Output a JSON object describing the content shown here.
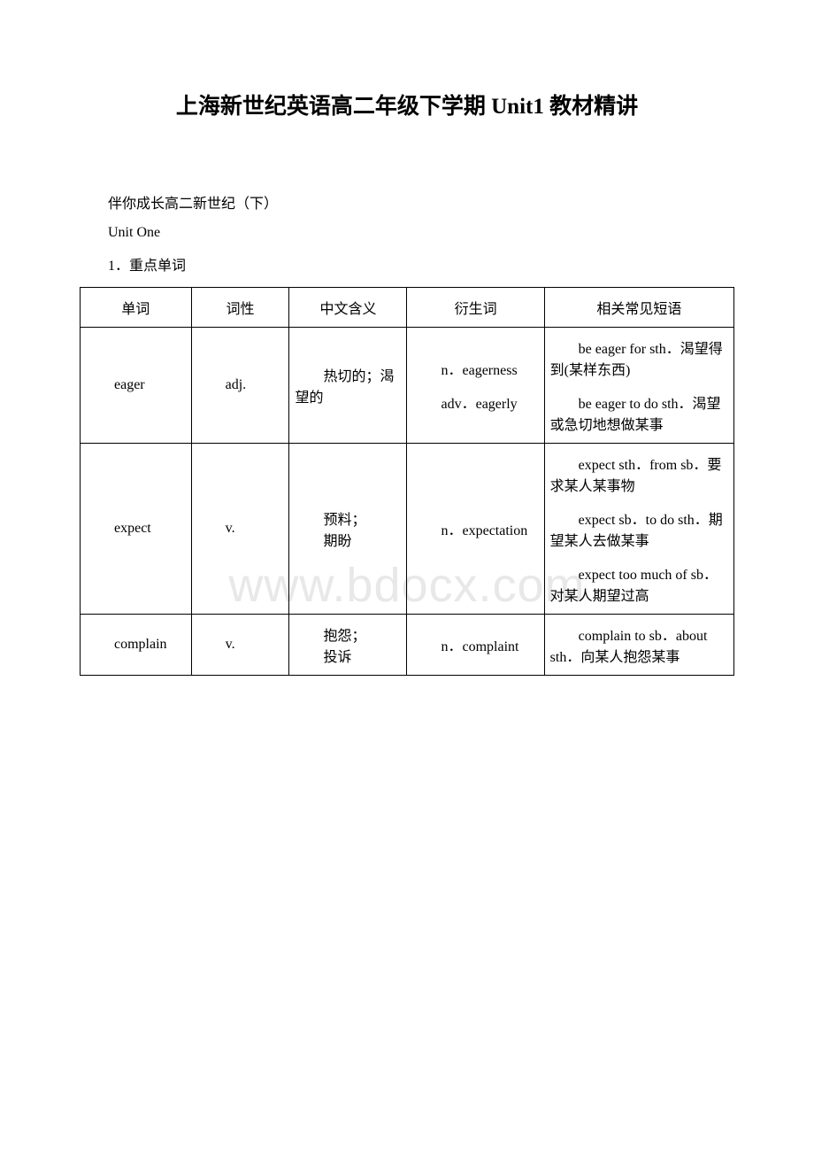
{
  "title": "上海新世纪英语高二年级下学期 Unit1 教材精讲",
  "intro": "伴你成长高二新世纪（下）",
  "unit": "Unit One",
  "section": "1．重点单词",
  "watermark": "www.bdocx.com",
  "headers": {
    "word": "单词",
    "pos": "词性",
    "meaning": "中文含义",
    "deriv": "衍生词",
    "phrase": "相关常见短语"
  },
  "rows": [
    {
      "word": "eager",
      "pos": "adj.",
      "meaning": "热切的；渴望的",
      "deriv": [
        "n．eagerness",
        "adv．eagerly"
      ],
      "phrase": [
        "be eager for sth．渴望得到(某样东西)",
        "be eager to do sth．渴望或急切地想做某事"
      ]
    },
    {
      "word": "expect",
      "pos": "v.",
      "meaning_lines": [
        "预料；",
        "期盼"
      ],
      "deriv": [
        "n．expectation"
      ],
      "phrase": [
        "expect sth．from sb．要求某人某事物",
        "expect sb．to do sth．期望某人去做某事",
        "expect too much of sb．对某人期望过高"
      ]
    },
    {
      "word": "complain",
      "pos": "v.",
      "meaning_lines": [
        "抱怨；",
        "投诉"
      ],
      "deriv": [
        "n．complaint"
      ],
      "phrase": [
        "complain to sb．about sth．向某人抱怨某事"
      ]
    }
  ]
}
